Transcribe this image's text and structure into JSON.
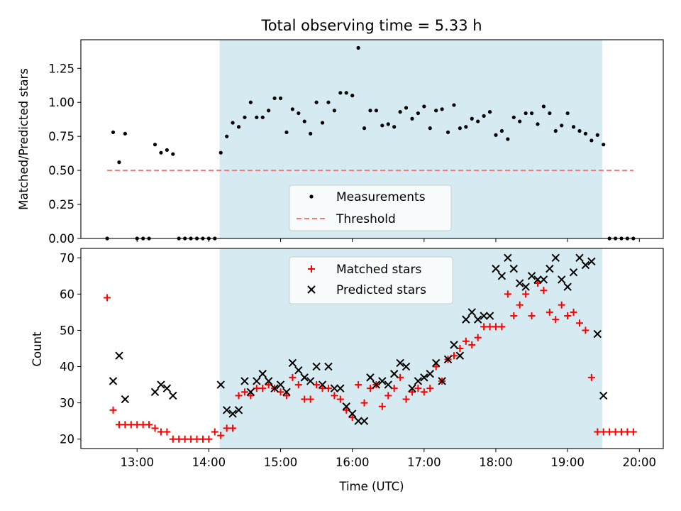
{
  "chart_data": [
    {
      "type": "scatter",
      "title": "Total observing time = 5.33 h",
      "ylabel": "Matched/Predicted stars",
      "xlabel": "",
      "xlim": [
        "12:13",
        "20:20"
      ],
      "ylim": [
        0,
        1.46
      ],
      "yticks": [
        "0.00",
        "0.25",
        "0.50",
        "0.75",
        "1.00",
        "1.25"
      ],
      "shaded_region": [
        "14:09",
        "19:29"
      ],
      "shade_color": "#d4eaf0",
      "legend_position": "lower-center",
      "legend": [
        "Measurements",
        "Threshold"
      ],
      "threshold": {
        "name": "Threshold",
        "value": 0.5,
        "x_range": [
          "12:35",
          "19:55"
        ],
        "color": "#f07a7a"
      },
      "series": [
        {
          "name": "Measurements",
          "color": "#000000",
          "x": [
            "12:35",
            "12:40",
            "12:45",
            "12:50",
            "13:00",
            "13:05",
            "13:10",
            "13:15",
            "13:20",
            "13:25",
            "13:30",
            "13:35",
            "13:40",
            "13:45",
            "13:50",
            "13:55",
            "14:00",
            "14:05",
            "14:10",
            "14:15",
            "14:20",
            "14:25",
            "14:30",
            "14:35",
            "14:40",
            "14:45",
            "14:50",
            "14:55",
            "15:00",
            "15:05",
            "15:10",
            "15:15",
            "15:20",
            "15:25",
            "15:30",
            "15:35",
            "15:40",
            "15:45",
            "15:50",
            "15:55",
            "16:00",
            "16:05",
            "16:10",
            "16:15",
            "16:20",
            "16:25",
            "16:30",
            "16:35",
            "16:40",
            "16:45",
            "16:50",
            "16:55",
            "17:00",
            "17:05",
            "17:10",
            "17:15",
            "17:20",
            "17:25",
            "17:30",
            "17:35",
            "17:40",
            "17:45",
            "17:50",
            "17:55",
            "18:00",
            "18:05",
            "18:10",
            "18:15",
            "18:20",
            "18:25",
            "18:30",
            "18:35",
            "18:40",
            "18:45",
            "18:50",
            "18:55",
            "19:00",
            "19:05",
            "19:10",
            "19:15",
            "19:20",
            "19:25",
            "19:30",
            "19:35",
            "19:40",
            "19:45",
            "19:50",
            "19:55"
          ],
          "values": [
            0.0,
            0.78,
            0.56,
            0.77,
            0.0,
            0.0,
            0.0,
            0.69,
            0.63,
            0.65,
            0.62,
            0.0,
            0.0,
            0.0,
            0.0,
            0.0,
            0.0,
            0.0,
            0.63,
            0.75,
            0.85,
            0.82,
            0.89,
            1.0,
            0.89,
            0.89,
            0.94,
            1.03,
            1.03,
            0.78,
            0.95,
            0.92,
            0.86,
            0.77,
            1.0,
            0.85,
            1.0,
            0.94,
            1.07,
            1.07,
            1.05,
            1.4,
            0.81,
            0.94,
            0.94,
            0.83,
            0.84,
            0.82,
            0.93,
            0.96,
            0.88,
            0.92,
            0.97,
            0.81,
            0.94,
            0.95,
            0.78,
            0.98,
            0.81,
            0.82,
            0.88,
            0.86,
            0.9,
            0.93,
            0.76,
            0.79,
            0.73,
            0.89,
            0.86,
            0.92,
            0.92,
            0.84,
            0.97,
            0.92,
            0.79,
            0.83,
            0.92,
            0.82,
            0.79,
            0.77,
            0.72,
            0.76,
            0.69,
            0.0,
            0.0,
            0.0,
            0.0,
            0.0
          ]
        }
      ]
    },
    {
      "type": "scatter",
      "title": "",
      "xlabel": "Time (UTC)",
      "ylabel": "Count",
      "xlim": [
        "12:13",
        "20:20"
      ],
      "ylim": [
        17.4,
        72.6
      ],
      "xticks": [
        "13:00",
        "14:00",
        "15:00",
        "16:00",
        "17:00",
        "18:00",
        "19:00",
        "20:00"
      ],
      "yticks": [
        "20",
        "30",
        "40",
        "50",
        "60",
        "70"
      ],
      "shaded_region": [
        "14:09",
        "19:29"
      ],
      "shade_color": "#d4eaf0",
      "legend_position": "upper-center",
      "legend": [
        "Matched stars",
        "Predicted stars"
      ],
      "series": [
        {
          "name": "Matched stars",
          "marker": "plus",
          "color": "#ff0000",
          "x": [
            "12:35",
            "12:40",
            "12:45",
            "12:50",
            "12:55",
            "13:00",
            "13:05",
            "13:10",
            "13:15",
            "13:20",
            "13:25",
            "13:30",
            "13:35",
            "13:40",
            "13:45",
            "13:50",
            "13:55",
            "14:00",
            "14:05",
            "14:10",
            "14:15",
            "14:20",
            "14:25",
            "14:30",
            "14:35",
            "14:40",
            "14:45",
            "14:50",
            "14:55",
            "15:00",
            "15:05",
            "15:10",
            "15:15",
            "15:20",
            "15:25",
            "15:30",
            "15:35",
            "15:40",
            "15:45",
            "15:50",
            "15:55",
            "16:00",
            "16:05",
            "16:10",
            "16:15",
            "16:20",
            "16:25",
            "16:30",
            "16:35",
            "16:40",
            "16:45",
            "16:50",
            "16:55",
            "17:00",
            "17:05",
            "17:10",
            "17:15",
            "17:20",
            "17:25",
            "17:30",
            "17:35",
            "17:40",
            "17:45",
            "17:50",
            "17:55",
            "18:00",
            "18:05",
            "18:10",
            "18:15",
            "18:20",
            "18:25",
            "18:30",
            "18:35",
            "18:40",
            "18:45",
            "18:50",
            "18:55",
            "19:00",
            "19:05",
            "19:10",
            "19:15",
            "19:20",
            "19:25",
            "19:30",
            "19:35",
            "19:40",
            "19:45",
            "19:50",
            "19:55"
          ],
          "values": [
            59,
            28,
            24,
            24,
            24,
            24,
            24,
            24,
            23,
            22,
            22,
            20,
            20,
            20,
            20,
            20,
            20,
            20,
            22,
            21,
            23,
            23,
            32,
            33,
            32,
            34,
            34,
            35,
            34,
            33,
            32,
            37,
            35,
            31,
            31,
            35,
            34,
            34,
            32,
            31,
            28,
            26,
            35,
            30,
            34,
            35,
            29,
            32,
            34,
            37,
            31,
            33,
            34,
            33,
            34,
            40,
            36,
            42,
            43,
            45,
            47,
            46,
            48,
            51,
            51,
            51,
            51,
            60,
            54,
            57,
            60,
            54,
            63,
            61,
            55,
            53,
            57,
            54,
            55,
            52,
            50,
            37,
            22,
            22,
            22,
            22,
            22,
            22,
            22
          ]
        },
        {
          "name": "Predicted stars",
          "marker": "x",
          "color": "#000000",
          "x": [
            "12:40",
            "12:45",
            "12:50",
            "13:15",
            "13:20",
            "13:25",
            "13:30",
            "14:10",
            "14:15",
            "14:20",
            "14:25",
            "14:30",
            "14:35",
            "14:40",
            "14:45",
            "14:50",
            "14:55",
            "15:00",
            "15:05",
            "15:10",
            "15:15",
            "15:20",
            "15:25",
            "15:30",
            "15:35",
            "15:40",
            "15:45",
            "15:50",
            "15:55",
            "16:00",
            "16:05",
            "16:10",
            "16:15",
            "16:20",
            "16:25",
            "16:30",
            "16:35",
            "16:40",
            "16:45",
            "16:50",
            "16:55",
            "17:00",
            "17:05",
            "17:10",
            "17:15",
            "17:20",
            "17:25",
            "17:30",
            "17:35",
            "17:40",
            "17:45",
            "17:50",
            "17:55",
            "18:00",
            "18:05",
            "18:10",
            "18:15",
            "18:20",
            "18:25",
            "18:30",
            "18:35",
            "18:40",
            "18:45",
            "18:50",
            "18:55",
            "19:00",
            "19:05",
            "19:10",
            "19:15",
            "19:20",
            "19:25",
            "19:30"
          ],
          "values": [
            36,
            43,
            31,
            33,
            35,
            34,
            32,
            35,
            28,
            27,
            28,
            36,
            33,
            36,
            38,
            36,
            34,
            35,
            33,
            41,
            39,
            37,
            36,
            40,
            35,
            40,
            34,
            34,
            29,
            27,
            25,
            25,
            37,
            35,
            36,
            35,
            38,
            41,
            40,
            34,
            36,
            37,
            38,
            41,
            36,
            42,
            46,
            43,
            53,
            55,
            53,
            54,
            54,
            67,
            65,
            70,
            67,
            63,
            62,
            65,
            64,
            64,
            67,
            70,
            64,
            62,
            66,
            70,
            68,
            69,
            49,
            32
          ]
        }
      ]
    }
  ]
}
